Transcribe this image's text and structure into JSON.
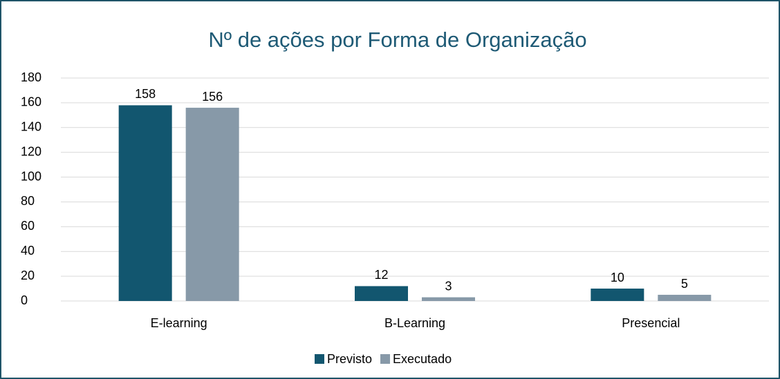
{
  "chart_data": {
    "type": "bar",
    "title": "Nº de ações por Forma de Organização",
    "categories": [
      "E-learning",
      "B-Learning",
      "Presencial"
    ],
    "series": [
      {
        "name": "Previsto",
        "color": "#12566f",
        "values": [
          158,
          12,
          10
        ]
      },
      {
        "name": "Executado",
        "color": "#8799a8",
        "values": [
          156,
          3,
          5
        ]
      }
    ],
    "ylim": [
      0,
      180
    ],
    "yticks": [
      0,
      20,
      40,
      60,
      80,
      100,
      120,
      140,
      160,
      180
    ],
    "grid": true,
    "legend": "bottom"
  }
}
